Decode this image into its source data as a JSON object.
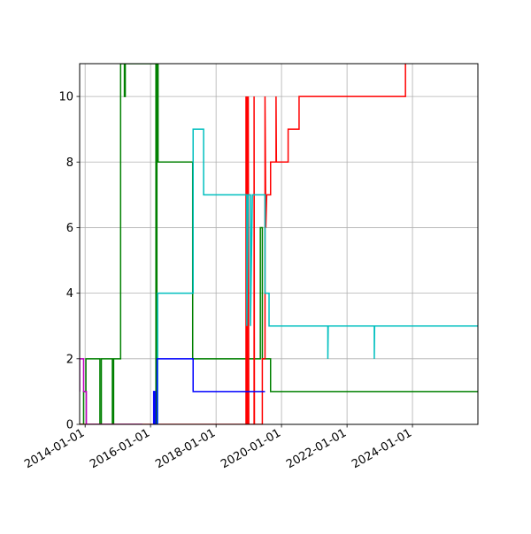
{
  "chart_data": {
    "type": "line",
    "title": "",
    "xlabel": "",
    "ylabel": "",
    "x_axis_type": "date",
    "xlim": [
      "2013-11-01",
      "2025-12-31"
    ],
    "ylim": [
      0,
      11
    ],
    "grid": true,
    "legend": "none",
    "x_ticks": [
      "2014-01-01",
      "2016-01-01",
      "2018-01-01",
      "2020-01-01",
      "2022-01-01",
      "2024-01-01"
    ],
    "x_tick_labels": [
      "2014-01-01",
      "2016-01-01",
      "2018-01-01",
      "2020-01-01",
      "2022-01-01",
      "2024-01-01"
    ],
    "y_ticks": [
      0,
      2,
      4,
      6,
      8,
      10
    ],
    "y_tick_labels": [
      "0",
      "2",
      "4",
      "6",
      "8",
      "10"
    ],
    "series": [
      {
        "color": "#008000",
        "points": [
          [
            "2013-11-01",
            0
          ],
          [
            "2013-12-15",
            0
          ],
          [
            "2013-12-15",
            1
          ],
          [
            "2014-01-10",
            1
          ],
          [
            "2014-01-10",
            2
          ],
          [
            "2014-06-15",
            2
          ],
          [
            "2014-06-15",
            0
          ],
          [
            "2014-07-01",
            0
          ],
          [
            "2014-07-01",
            2
          ],
          [
            "2014-11-01",
            2
          ],
          [
            "2014-11-01",
            0
          ],
          [
            "2014-11-15",
            0
          ],
          [
            "2014-11-15",
            2
          ],
          [
            "2015-02-01",
            2
          ],
          [
            "2015-02-01",
            11
          ],
          [
            "2015-03-15",
            11
          ],
          [
            "2015-03-15",
            10
          ],
          [
            "2015-03-25",
            10
          ],
          [
            "2015-03-25",
            11
          ],
          [
            "2016-03-01",
            11
          ],
          [
            "2016-03-01",
            0
          ],
          [
            "2016-03-12",
            0
          ],
          [
            "2016-03-12",
            11
          ],
          [
            "2016-03-25",
            11
          ],
          [
            "2016-03-25",
            8
          ],
          [
            "2017-04-15",
            8
          ],
          [
            "2017-04-15",
            2
          ],
          [
            "2019-05-10",
            2
          ],
          [
            "2019-05-10",
            6
          ],
          [
            "2019-06-01",
            6
          ],
          [
            "2019-06-01",
            2
          ],
          [
            "2019-09-01",
            2
          ],
          [
            "2019-09-01",
            1
          ],
          [
            "2025-12-31",
            1
          ]
        ]
      },
      {
        "color": "#ff0000",
        "points": [
          [
            "2013-11-01",
            0
          ],
          [
            "2018-12-01",
            0
          ],
          [
            "2018-12-01",
            10
          ],
          [
            "2018-12-05",
            0
          ],
          [
            "2018-12-08",
            10
          ],
          [
            "2018-12-11",
            0
          ],
          [
            "2018-12-14",
            10
          ],
          [
            "2018-12-17",
            3
          ],
          [
            "2018-12-20",
            10
          ],
          [
            "2018-12-23",
            0
          ],
          [
            "2018-12-26",
            10
          ],
          [
            "2019-01-01",
            0
          ],
          [
            "2019-03-01",
            0
          ],
          [
            "2019-03-01",
            10
          ],
          [
            "2019-03-05",
            0
          ],
          [
            "2019-06-01",
            0
          ],
          [
            "2019-06-01",
            2
          ],
          [
            "2019-07-01",
            2
          ],
          [
            "2019-07-01",
            10
          ],
          [
            "2019-07-10",
            6
          ],
          [
            "2019-07-20",
            7
          ],
          [
            "2019-09-01",
            7
          ],
          [
            "2019-09-01",
            8
          ],
          [
            "2019-10-15",
            8
          ],
          [
            "2019-11-01",
            8
          ],
          [
            "2019-11-01",
            10
          ],
          [
            "2019-11-05",
            8
          ],
          [
            "2020-03-15",
            8
          ],
          [
            "2020-03-15",
            9
          ],
          [
            "2020-07-15",
            9
          ],
          [
            "2020-07-15",
            10
          ],
          [
            "2023-10-15",
            10
          ],
          [
            "2023-10-15",
            11
          ]
        ]
      },
      {
        "color": "#00bfbf",
        "points": [
          [
            "2016-02-01",
            0
          ],
          [
            "2016-03-20",
            0
          ],
          [
            "2016-03-20",
            4
          ],
          [
            "2017-04-20",
            4
          ],
          [
            "2017-04-20",
            9
          ],
          [
            "2017-08-15",
            9
          ],
          [
            "2017-08-15",
            7
          ],
          [
            "2018-12-10",
            7
          ],
          [
            "2018-12-10",
            3
          ],
          [
            "2018-12-25",
            7
          ],
          [
            "2019-01-20",
            7
          ],
          [
            "2019-01-20",
            3
          ],
          [
            "2019-02-10",
            7
          ],
          [
            "2019-07-01",
            7
          ],
          [
            "2019-07-01",
            4
          ],
          [
            "2019-08-15",
            4
          ],
          [
            "2019-08-15",
            3
          ],
          [
            "2021-06-01",
            3
          ],
          [
            "2021-06-01",
            2
          ],
          [
            "2021-06-05",
            3
          ],
          [
            "2022-11-01",
            3
          ],
          [
            "2022-11-01",
            2
          ],
          [
            "2022-11-05",
            3
          ],
          [
            "2025-12-31",
            3
          ]
        ]
      },
      {
        "color": "#0000ff",
        "points": [
          [
            "2016-02-01",
            0
          ],
          [
            "2016-02-05",
            0
          ],
          [
            "2016-02-05",
            1
          ],
          [
            "2016-02-20",
            1
          ],
          [
            "2016-02-20",
            0
          ],
          [
            "2016-03-15",
            0
          ],
          [
            "2016-03-15",
            2
          ],
          [
            "2017-04-20",
            2
          ],
          [
            "2017-04-20",
            1
          ],
          [
            "2019-07-01",
            1
          ]
        ]
      },
      {
        "color": "#bf00bf",
        "points": [
          [
            "2013-11-01",
            1
          ],
          [
            "2013-11-01",
            2
          ],
          [
            "2013-12-15",
            2
          ],
          [
            "2013-12-15",
            1
          ],
          [
            "2014-01-15",
            1
          ],
          [
            "2014-01-15",
            0
          ],
          [
            "2015-10-01",
            0
          ]
        ]
      }
    ]
  }
}
